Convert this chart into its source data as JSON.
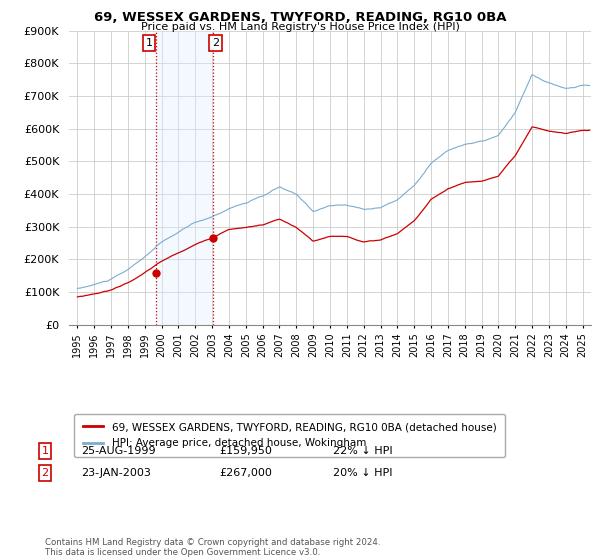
{
  "title": "69, WESSEX GARDENS, TWYFORD, READING, RG10 0BA",
  "subtitle": "Price paid vs. HM Land Registry's House Price Index (HPI)",
  "ylim": [
    0,
    900000
  ],
  "yticks": [
    0,
    100000,
    200000,
    300000,
    400000,
    500000,
    600000,
    700000,
    800000,
    900000
  ],
  "legend_red": "69, WESSEX GARDENS, TWYFORD, READING, RG10 0BA (detached house)",
  "legend_blue": "HPI: Average price, detached house, Wokingham",
  "annotation1_date": "25-AUG-1999",
  "annotation1_price": "£159,950",
  "annotation1_hpi": "22% ↓ HPI",
  "annotation2_date": "23-JAN-2003",
  "annotation2_price": "£267,000",
  "annotation2_hpi": "20% ↓ HPI",
  "footer": "Contains HM Land Registry data © Crown copyright and database right 2024.\nThis data is licensed under the Open Government Licence v3.0.",
  "red_color": "#cc0000",
  "blue_color": "#7aadcf",
  "shaded_color": "#ddeeff",
  "point1_x": 1999.646,
  "point1_y": 159950,
  "point2_x": 2003.055,
  "point2_y": 267000,
  "shade_x1": 1999.646,
  "shade_x2": 2003.055,
  "xlim_left": 1995.0,
  "xlim_right": 2025.5
}
